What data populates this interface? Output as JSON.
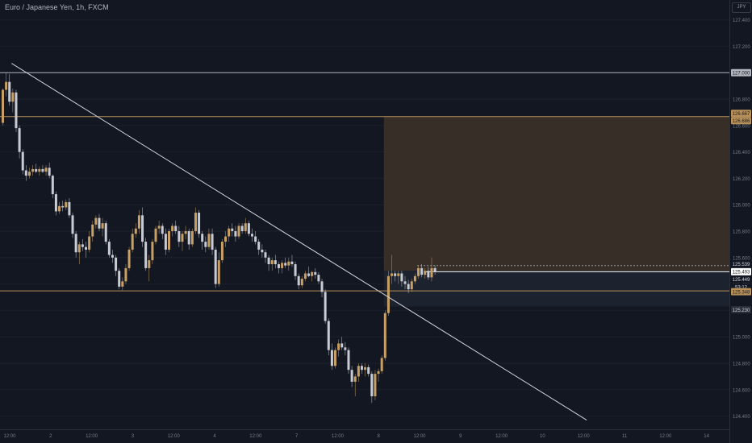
{
  "header": {
    "title": "Euro / Japanese Yen, 1h, FXCM",
    "currency": "JPY"
  },
  "colors": {
    "background": "#131722",
    "up_candle": "#c8a064",
    "down_candle": "#c8cbd3",
    "trendline": "#d1d4dc",
    "level_gold": "#b8915a",
    "level_white": "#b2b5be",
    "zone_fill": "#3d3328"
  },
  "chart_data": {
    "type": "candlestick",
    "title": "Euro / Japanese Yen, 1h, FXCM",
    "ylim": [
      124.3,
      127.55
    ],
    "y_ticks": [
      "127.400",
      "127.200",
      "127.000",
      "126.800",
      "126.600",
      "126.400",
      "126.200",
      "126.000",
      "125.800",
      "125.600",
      "125.400",
      "125.200",
      "125.000",
      "124.800",
      "124.600",
      "124.400"
    ],
    "x_ticks": [
      "12:00",
      "2",
      "12:00",
      "3",
      "12:00",
      "4",
      "12:00",
      "7",
      "12:00",
      "8",
      "12:00",
      "9",
      "12:00",
      "10",
      "12:00",
      "11",
      "12:00",
      "14"
    ],
    "price_labels": {
      "line_127": "127.000",
      "zone_top": "126.667",
      "zone_top_2": "126.686",
      "level_539": "125.539",
      "current": "125.493",
      "level_449": "125.449",
      "countdown": "53:12",
      "support": "125.348",
      "zone_bottom": "125.230"
    },
    "levels": [
      {
        "name": "resistance",
        "price": 127.0
      },
      {
        "name": "zone-top",
        "price": 126.667
      },
      {
        "name": "support",
        "price": 125.348
      }
    ],
    "zone": {
      "top": 126.667,
      "bottom": 125.23,
      "start_time_index": 115
    },
    "trendline": {
      "x1_index": 3,
      "y1": 127.07,
      "x2_index": 176,
      "y2": 124.37
    },
    "candles": [
      [
        126.62,
        126.88,
        126.6,
        126.87
      ],
      [
        126.87,
        127.0,
        126.82,
        126.93
      ],
      [
        126.93,
        126.99,
        126.75,
        126.78
      ],
      [
        126.78,
        126.88,
        126.7,
        126.85
      ],
      [
        126.85,
        126.87,
        126.55,
        126.58
      ],
      [
        126.58,
        126.6,
        126.35,
        126.4
      ],
      [
        126.4,
        126.42,
        126.23,
        126.26
      ],
      [
        126.26,
        126.3,
        126.18,
        126.22
      ],
      [
        126.22,
        126.28,
        126.2,
        126.25
      ],
      [
        126.25,
        126.3,
        126.22,
        126.27
      ],
      [
        126.27,
        126.31,
        126.24,
        126.25
      ],
      [
        126.25,
        126.29,
        126.22,
        126.27
      ],
      [
        126.27,
        126.3,
        126.24,
        126.25
      ],
      [
        126.25,
        126.3,
        126.22,
        126.28
      ],
      [
        126.28,
        126.32,
        126.2,
        126.22
      ],
      [
        126.22,
        126.23,
        126.05,
        126.08
      ],
      [
        126.08,
        126.1,
        125.92,
        125.95
      ],
      [
        125.95,
        126.02,
        125.93,
        125.99
      ],
      [
        125.99,
        126.03,
        125.95,
        125.98
      ],
      [
        125.98,
        126.04,
        125.96,
        126.02
      ],
      [
        126.02,
        126.05,
        125.9,
        125.92
      ],
      [
        125.92,
        125.94,
        125.75,
        125.78
      ],
      [
        125.78,
        125.8,
        125.6,
        125.64
      ],
      [
        125.64,
        125.72,
        125.55,
        125.7
      ],
      [
        125.7,
        125.74,
        125.65,
        125.68
      ],
      [
        125.68,
        125.72,
        125.6,
        125.66
      ],
      [
        125.66,
        125.8,
        125.64,
        125.76
      ],
      [
        125.76,
        125.88,
        125.72,
        125.85
      ],
      [
        125.85,
        125.92,
        125.82,
        125.9
      ],
      [
        125.9,
        125.93,
        125.8,
        125.82
      ],
      [
        125.82,
        125.9,
        125.76,
        125.86
      ],
      [
        125.86,
        125.88,
        125.7,
        125.72
      ],
      [
        125.72,
        125.74,
        125.6,
        125.62
      ],
      [
        125.62,
        125.66,
        125.56,
        125.6
      ],
      [
        125.6,
        125.62,
        125.46,
        125.5
      ],
      [
        125.5,
        125.52,
        125.36,
        125.38
      ],
      [
        125.38,
        125.45,
        125.35,
        125.42
      ],
      [
        125.42,
        125.55,
        125.4,
        125.52
      ],
      [
        125.52,
        125.68,
        125.5,
        125.66
      ],
      [
        125.66,
        125.82,
        125.64,
        125.78
      ],
      [
        125.78,
        125.86,
        125.75,
        125.82
      ],
      [
        125.82,
        125.96,
        125.78,
        125.92
      ],
      [
        125.92,
        125.98,
        125.68,
        125.72
      ],
      [
        125.72,
        125.75,
        125.5,
        125.52
      ],
      [
        125.52,
        125.62,
        125.42,
        125.58
      ],
      [
        125.58,
        125.74,
        125.55,
        125.72
      ],
      [
        125.72,
        125.84,
        125.7,
        125.82
      ],
      [
        125.82,
        125.88,
        125.78,
        125.84
      ],
      [
        125.84,
        125.86,
        125.74,
        125.78
      ],
      [
        125.78,
        125.82,
        125.62,
        125.66
      ],
      [
        125.66,
        125.82,
        125.64,
        125.8
      ],
      [
        125.8,
        125.86,
        125.76,
        125.84
      ],
      [
        125.84,
        125.88,
        125.78,
        125.8
      ],
      [
        125.8,
        125.84,
        125.68,
        125.72
      ],
      [
        125.72,
        125.8,
        125.65,
        125.78
      ],
      [
        125.78,
        125.84,
        125.74,
        125.8
      ],
      [
        125.8,
        125.82,
        125.66,
        125.7
      ],
      [
        125.7,
        125.82,
        125.68,
        125.8
      ],
      [
        125.8,
        125.98,
        125.78,
        125.94
      ],
      [
        125.94,
        125.96,
        125.75,
        125.78
      ],
      [
        125.78,
        125.8,
        125.66,
        125.72
      ],
      [
        125.72,
        125.76,
        125.64,
        125.68
      ],
      [
        125.68,
        125.82,
        125.66,
        125.78
      ],
      [
        125.78,
        125.82,
        125.62,
        125.66
      ],
      [
        125.66,
        125.68,
        125.37,
        125.4
      ],
      [
        125.4,
        125.64,
        125.38,
        125.58
      ],
      [
        125.58,
        125.74,
        125.56,
        125.72
      ],
      [
        125.72,
        125.8,
        125.68,
        125.76
      ],
      [
        125.76,
        125.84,
        125.72,
        125.82
      ],
      [
        125.82,
        125.86,
        125.76,
        125.8
      ],
      [
        125.8,
        125.84,
        125.72,
        125.76
      ],
      [
        125.76,
        125.86,
        125.74,
        125.84
      ],
      [
        125.84,
        125.86,
        125.78,
        125.8
      ],
      [
        125.8,
        125.9,
        125.78,
        125.86
      ],
      [
        125.86,
        125.88,
        125.76,
        125.78
      ],
      [
        125.78,
        125.82,
        125.72,
        125.76
      ],
      [
        125.76,
        125.8,
        125.7,
        125.72
      ],
      [
        125.72,
        125.74,
        125.62,
        125.66
      ],
      [
        125.66,
        125.7,
        125.6,
        125.64
      ],
      [
        125.64,
        125.66,
        125.56,
        125.6
      ],
      [
        125.6,
        125.62,
        125.5,
        125.55
      ],
      [
        125.55,
        125.6,
        125.5,
        125.58
      ],
      [
        125.58,
        125.62,
        125.52,
        125.55
      ],
      [
        125.55,
        125.57,
        125.48,
        125.52
      ],
      [
        125.52,
        125.58,
        125.48,
        125.56
      ],
      [
        125.56,
        125.6,
        125.52,
        125.54
      ],
      [
        125.54,
        125.6,
        125.5,
        125.57
      ],
      [
        125.57,
        125.62,
        125.53,
        125.55
      ],
      [
        125.55,
        125.57,
        125.43,
        125.46
      ],
      [
        125.46,
        125.48,
        125.36,
        125.39
      ],
      [
        125.39,
        125.46,
        125.37,
        125.44
      ],
      [
        125.44,
        125.5,
        125.42,
        125.48
      ],
      [
        125.48,
        125.53,
        125.45,
        125.46
      ],
      [
        125.46,
        125.5,
        125.42,
        125.49
      ],
      [
        125.49,
        125.52,
        125.44,
        125.47
      ],
      [
        125.47,
        125.49,
        125.4,
        125.42
      ],
      [
        125.42,
        125.44,
        125.3,
        125.34
      ],
      [
        125.34,
        125.36,
        125.1,
        125.12
      ],
      [
        125.12,
        125.14,
        124.86,
        124.9
      ],
      [
        124.9,
        124.95,
        124.75,
        124.78
      ],
      [
        124.78,
        124.92,
        124.76,
        124.9
      ],
      [
        124.9,
        124.98,
        124.85,
        124.95
      ],
      [
        124.95,
        125.0,
        124.9,
        124.92
      ],
      [
        124.92,
        124.96,
        124.86,
        124.9
      ],
      [
        124.9,
        124.92,
        124.72,
        124.75
      ],
      [
        124.75,
        124.78,
        124.62,
        124.66
      ],
      [
        124.66,
        124.72,
        124.55,
        124.7
      ],
      [
        124.7,
        124.8,
        124.66,
        124.78
      ],
      [
        124.78,
        124.8,
        124.72,
        124.75
      ],
      [
        124.75,
        124.8,
        124.7,
        124.77
      ],
      [
        124.77,
        124.79,
        124.7,
        124.72
      ],
      [
        124.72,
        124.74,
        124.5,
        124.55
      ],
      [
        124.55,
        124.75,
        124.52,
        124.72
      ],
      [
        124.72,
        124.76,
        124.66,
        124.74
      ],
      [
        124.74,
        124.86,
        124.72,
        124.84
      ],
      [
        124.84,
        125.2,
        124.82,
        125.18
      ],
      [
        125.18,
        125.5,
        125.16,
        125.46
      ],
      [
        125.46,
        125.62,
        125.4,
        125.48
      ],
      [
        125.48,
        125.5,
        125.42,
        125.46
      ],
      [
        125.46,
        125.5,
        125.4,
        125.48
      ],
      [
        125.48,
        125.5,
        125.38,
        125.42
      ],
      [
        125.42,
        125.46,
        125.36,
        125.4
      ],
      [
        125.4,
        125.43,
        125.33,
        125.36
      ],
      [
        125.36,
        125.44,
        125.34,
        125.42
      ],
      [
        125.42,
        125.48,
        125.4,
        125.46
      ],
      [
        125.46,
        125.54,
        125.44,
        125.52
      ],
      [
        125.52,
        125.55,
        125.45,
        125.47
      ],
      [
        125.47,
        125.52,
        125.44,
        125.5
      ],
      [
        125.5,
        125.53,
        125.43,
        125.45
      ],
      [
        125.45,
        125.6,
        125.42,
        125.52
      ],
      [
        125.52,
        125.54,
        125.47,
        125.49
      ]
    ]
  }
}
